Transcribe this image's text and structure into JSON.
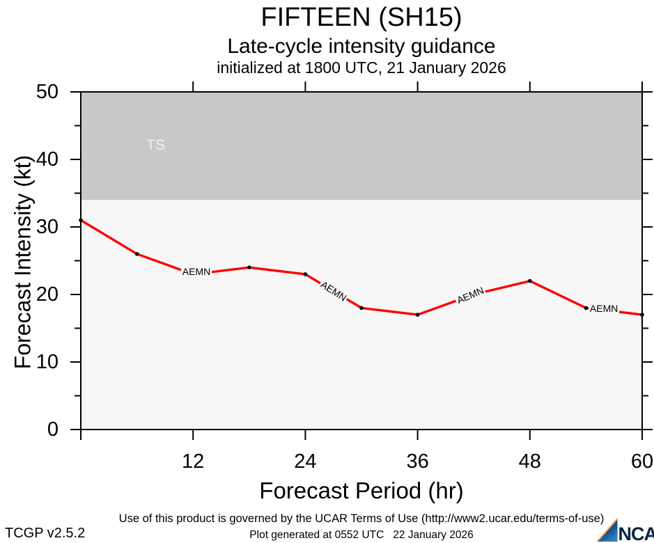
{
  "header": {
    "title": "FIFTEEN (SH15)",
    "subtitle": "Late-cycle intensity guidance",
    "init": "initialized at 1800 UTC, 21 January 2026"
  },
  "chart_data": {
    "type": "line",
    "title": "FIFTEEN (SH15)",
    "xlabel": "Forecast Period (hr)",
    "ylabel": "Forecast Intensity (kt)",
    "xlim": [
      0,
      60
    ],
    "ylim": [
      0,
      50
    ],
    "grid": false,
    "plot_bg": "#f7f7f7",
    "axis_color": "#000000",
    "xticks_labeled": [
      12,
      24,
      36,
      48,
      60
    ],
    "xticks_major": [
      0,
      12,
      24,
      36,
      48,
      60
    ],
    "yticks_major": [
      0,
      10,
      20,
      30,
      40,
      50
    ],
    "yticks_minor": [
      5,
      15,
      25,
      35,
      45
    ],
    "band": {
      "label": "TS",
      "from_kt": 34,
      "to_kt": 50,
      "color": "#c8c8c8",
      "label_color": "#f2f2f2",
      "label_hr": 8.05,
      "label_kt": 42.1
    },
    "series": [
      {
        "name": "AEMN",
        "color": "#ff0000",
        "marker_color": "#000000",
        "x": [
          0,
          6,
          12,
          18,
          24,
          30,
          36,
          42,
          48,
          54,
          60
        ],
        "values": [
          31,
          26,
          23,
          24,
          23,
          18,
          17,
          20,
          22,
          18,
          17
        ]
      }
    ],
    "series_labels": [
      {
        "text": "AEMN",
        "hr": 12.34,
        "kt": 23.4,
        "angle": 0
      },
      {
        "text": "AEMN",
        "hr": 27.0,
        "kt": 20.5,
        "angle": 33
      },
      {
        "text": "AEMN",
        "hr": 41.6,
        "kt": 19.9,
        "angle": -23
      },
      {
        "text": "AEMN",
        "hr": 55.9,
        "kt": 17.95,
        "angle": 0
      }
    ]
  },
  "footer": {
    "terms": "Use of this product is governed by the UCAR Terms of Use (http://www2.ucar.edu/terms-of-use)",
    "version": "TCGP v2.5.2",
    "generated": "Plot generated at 0552 UTC   22 January 2026",
    "logo_text": "NCAR",
    "logo_navy": "#0b2a5b",
    "logo_blue": "#2e7fc2",
    "logo_orange": "#f2a33c"
  }
}
